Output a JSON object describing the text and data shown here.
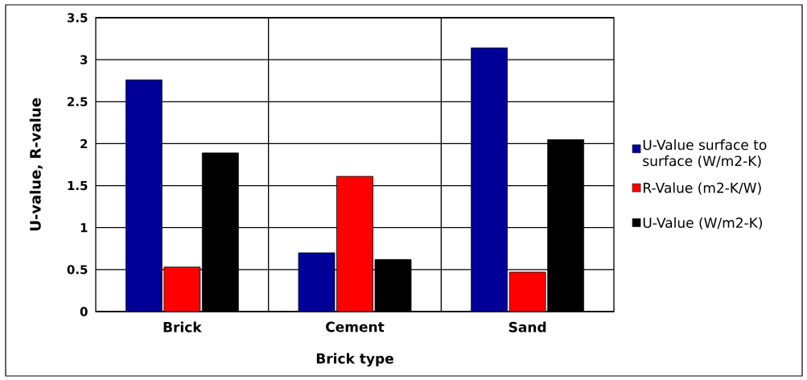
{
  "chart_data": {
    "type": "bar",
    "xlabel": "Brick type",
    "ylabel": "U-value, R-value",
    "categories": [
      "Brick",
      "Cement",
      "Sand"
    ],
    "series": [
      {
        "name": "U-Value surface to surface (W/m2-K)",
        "color": "#000099",
        "values": [
          2.76,
          0.7,
          3.14
        ]
      },
      {
        "name": "R-Value (m2-K/W)",
        "color": "#ff0000",
        "values": [
          0.53,
          1.61,
          0.47
        ]
      },
      {
        "name": "U-Value (W/m2-K)",
        "color": "#000000",
        "values": [
          1.89,
          0.62,
          2.05
        ]
      }
    ],
    "ylim": [
      0,
      3.5
    ],
    "yticks": [
      0,
      0.5,
      1,
      1.5,
      2,
      2.5,
      3,
      3.5
    ],
    "grid": true,
    "legend": "right"
  }
}
